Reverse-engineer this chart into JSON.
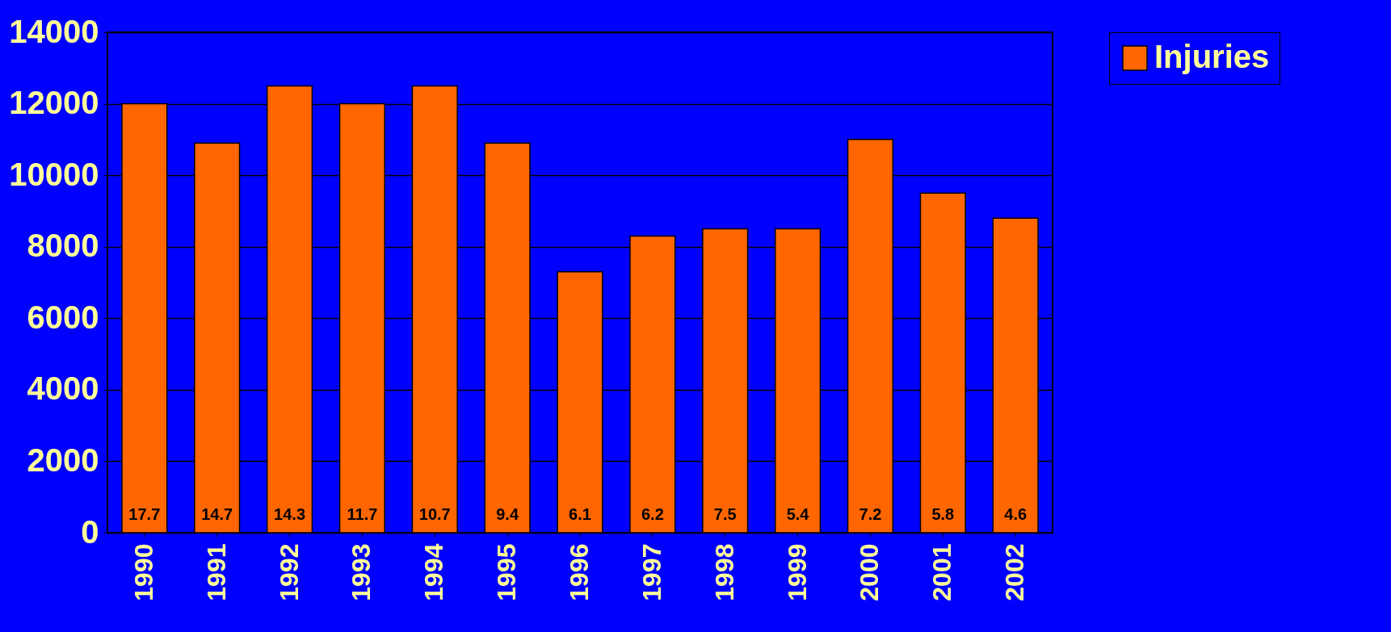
{
  "chart_data": {
    "type": "bar",
    "categories": [
      "1990",
      "1991",
      "1992",
      "1993",
      "1994",
      "1995",
      "1996",
      "1997",
      "1998",
      "1999",
      "2000",
      "2001",
      "2002"
    ],
    "series": [
      {
        "name": "Injuries",
        "color": "#ff6600",
        "values": [
          12000,
          10900,
          12500,
          12000,
          12500,
          10900,
          7300,
          8300,
          8500,
          8500,
          11000,
          9500,
          8800
        ]
      }
    ],
    "annotations": [
      "17.7",
      "14.7",
      "14.3",
      "11.7",
      "10.7",
      "9.4",
      "6.1",
      "6.2",
      "7.5",
      "5.4",
      "7.2",
      "5.8",
      "4.6"
    ],
    "ylim": [
      0,
      14000
    ],
    "yticks": [
      0,
      2000,
      4000,
      6000,
      8000,
      10000,
      12000,
      14000
    ],
    "grid": "y",
    "legend": "right"
  }
}
